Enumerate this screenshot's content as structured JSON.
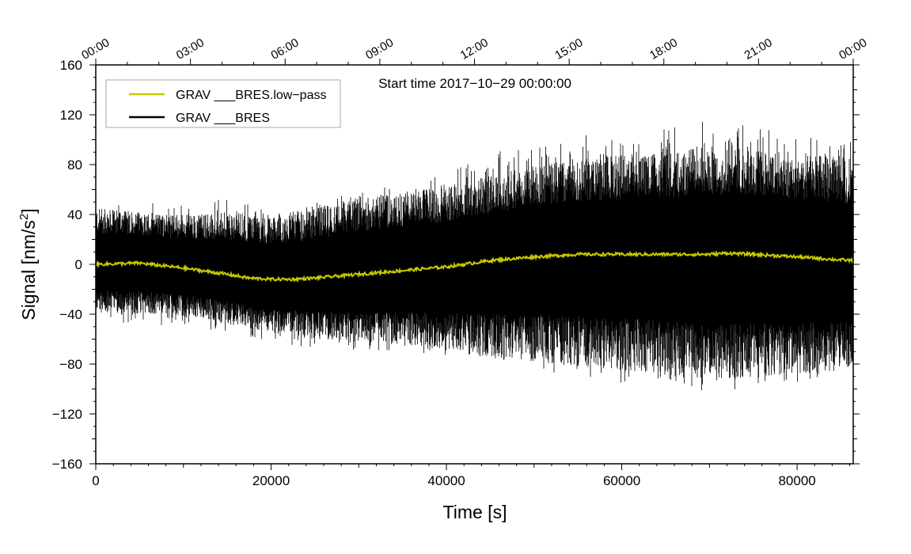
{
  "chart_data": {
    "type": "line",
    "title": "Start time 2017−10−29 00:00:00",
    "xlabel": "Time [s]",
    "ylabel_main": "Signal [nm/s",
    "ylabel_sup": "2",
    "ylabel_end": "]",
    "xlim": [
      0,
      86400
    ],
    "ylim": [
      -160,
      160
    ],
    "x_ticks": [
      0,
      20000,
      40000,
      60000,
      80000
    ],
    "x_tick_labels": [
      "0",
      "20000",
      "40000",
      "60000",
      "80000"
    ],
    "y_ticks": [
      -160,
      -120,
      -80,
      -40,
      0,
      40,
      80,
      120,
      160
    ],
    "y_tick_labels": [
      "−160",
      "−120",
      "−80",
      "−40",
      "0",
      "40",
      "80",
      "120",
      "160"
    ],
    "top_ticks": [
      0,
      10800,
      21600,
      32400,
      43200,
      54000,
      64800,
      75600,
      86400
    ],
    "top_tick_labels": [
      "00:00",
      "03:00",
      "06:00",
      "09:00",
      "12:00",
      "15:00",
      "18:00",
      "21:00",
      "00:00"
    ],
    "legend_position": "top-left",
    "grid": false,
    "series": [
      {
        "name": "GRAV ___BRES.low−pass",
        "color": "#c8c800",
        "x": [
          0,
          5000,
          10000,
          15000,
          17500,
          20000,
          22500,
          25000,
          30000,
          35000,
          40000,
          42000,
          45000,
          50000,
          55000,
          60000,
          65000,
          70000,
          72000,
          75000,
          80000,
          84000,
          86400
        ],
        "values": [
          0,
          1,
          -3,
          -8,
          -11,
          -12,
          -12,
          -11,
          -8,
          -5,
          -2,
          0,
          3,
          6,
          8,
          8,
          8,
          8,
          9,
          8,
          6,
          4,
          3
        ]
      },
      {
        "name": "GRAV ___BRES",
        "color": "#000000",
        "x": [
          0,
          5000,
          10000,
          15000,
          20000,
          25000,
          30000,
          35000,
          40000,
          45000,
          50000,
          55000,
          60000,
          65000,
          70000,
          75000,
          80000,
          86400
        ],
        "upper": [
          45,
          42,
          40,
          42,
          40,
          45,
          55,
          58,
          62,
          72,
          80,
          85,
          88,
          90,
          95,
          92,
          90,
          85
        ],
        "lower": [
          -38,
          -40,
          -42,
          -48,
          -55,
          -60,
          -62,
          -65,
          -70,
          -75,
          -78,
          -82,
          -85,
          -88,
          -95,
          -92,
          -88,
          -85
        ],
        "spike_max": [
          52,
          50,
          48,
          55,
          45,
          50,
          60,
          65,
          75,
          90,
          95,
          105,
          100,
          110,
          118,
          110,
          105,
          100
        ],
        "spike_min": [
          -45,
          -48,
          -50,
          -55,
          -62,
          -68,
          -72,
          -70,
          -78,
          -80,
          -85,
          -90,
          -95,
          -92,
          -105,
          -100,
          -95,
          -90
        ]
      }
    ]
  }
}
